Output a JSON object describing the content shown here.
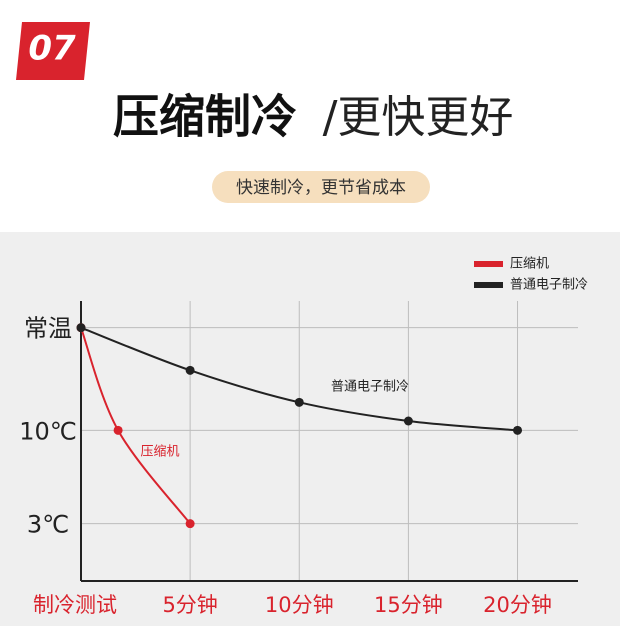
{
  "badge": "07",
  "title": "压缩制冷",
  "title_light": "/更快更好",
  "subtitle": "快速制冷，更节省成本",
  "chart_data": {
    "type": "line",
    "series": [
      {
        "name": "压缩机",
        "color": "#d9232d",
        "x": [
          0,
          1.7,
          5
        ],
        "values": [
          17.7,
          10,
          3
        ]
      },
      {
        "name": "普通电子制冷",
        "color": "#222222",
        "x": [
          0,
          5,
          10,
          15,
          20
        ],
        "values": [
          17.7,
          14.5,
          12.1,
          10.7,
          10
        ]
      }
    ],
    "annotations": [
      "普通电子制冷",
      "压缩机"
    ],
    "xlim": [
      0,
      23
    ],
    "xticks": [
      {
        "value": 0,
        "label": "制冷测试"
      },
      {
        "value": 5,
        "label": "5分钟"
      },
      {
        "value": 10,
        "label": "10分钟"
      },
      {
        "value": 15,
        "label": "15分钟"
      },
      {
        "value": 20,
        "label": "20分钟"
      }
    ],
    "ylim": [
      -1.3,
      19.7
    ],
    "yticks": [
      {
        "value": 3,
        "label": "3℃"
      },
      {
        "value": 10,
        "label": "10℃"
      },
      {
        "value": 17.7,
        "label": "常温"
      }
    ],
    "grid": true,
    "legend": "upper right"
  }
}
